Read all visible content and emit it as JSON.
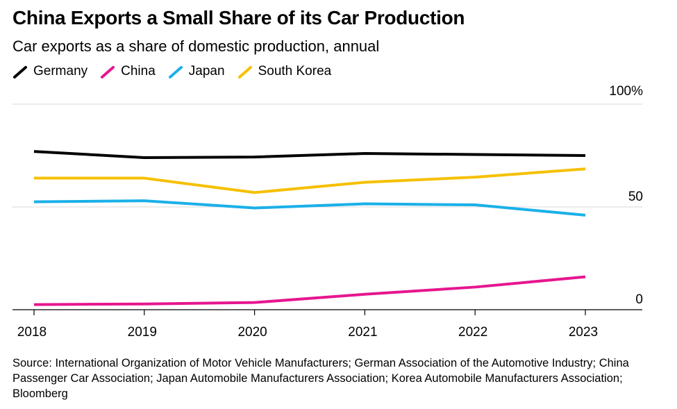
{
  "title": "China Exports a Small Share of its Car Production",
  "subtitle": "Car exports as a share of domestic production, annual",
  "source": "Source: International Organization of Motor Vehicle Manufacturers; German Association of the Automotive Industry; China Passenger Car Association; Japan Automobile Manufacturers Association; Korea Automobile Manufacturers Association; Bloomberg",
  "y_tick_labels": [
    "0",
    "50",
    "100%"
  ],
  "chart_data": {
    "type": "line",
    "x": [
      2018,
      2019,
      2020,
      2021,
      2022,
      2023
    ],
    "x_tick_labels": [
      "2018",
      "2019",
      "2020",
      "2021",
      "2022",
      "2023"
    ],
    "ylim": [
      0,
      100
    ],
    "y_ticks": [
      0,
      50,
      100
    ],
    "grid": true,
    "legend_position": "top-left",
    "series": [
      {
        "name": "Germany",
        "color": "#000000",
        "values": [
          77,
          74,
          74.3,
          76,
          75.5,
          75
        ]
      },
      {
        "name": "China",
        "color": "#e6168f",
        "values": [
          2.5,
          2.8,
          3.5,
          7.5,
          11,
          16
        ]
      },
      {
        "name": "Japan",
        "color": "#1ab0e8",
        "values": [
          52.5,
          53,
          49.5,
          51.5,
          51,
          46
        ]
      },
      {
        "name": "South Korea",
        "color": "#f5c000",
        "values": [
          64,
          64,
          57,
          62,
          64.5,
          68.5
        ]
      }
    ]
  }
}
